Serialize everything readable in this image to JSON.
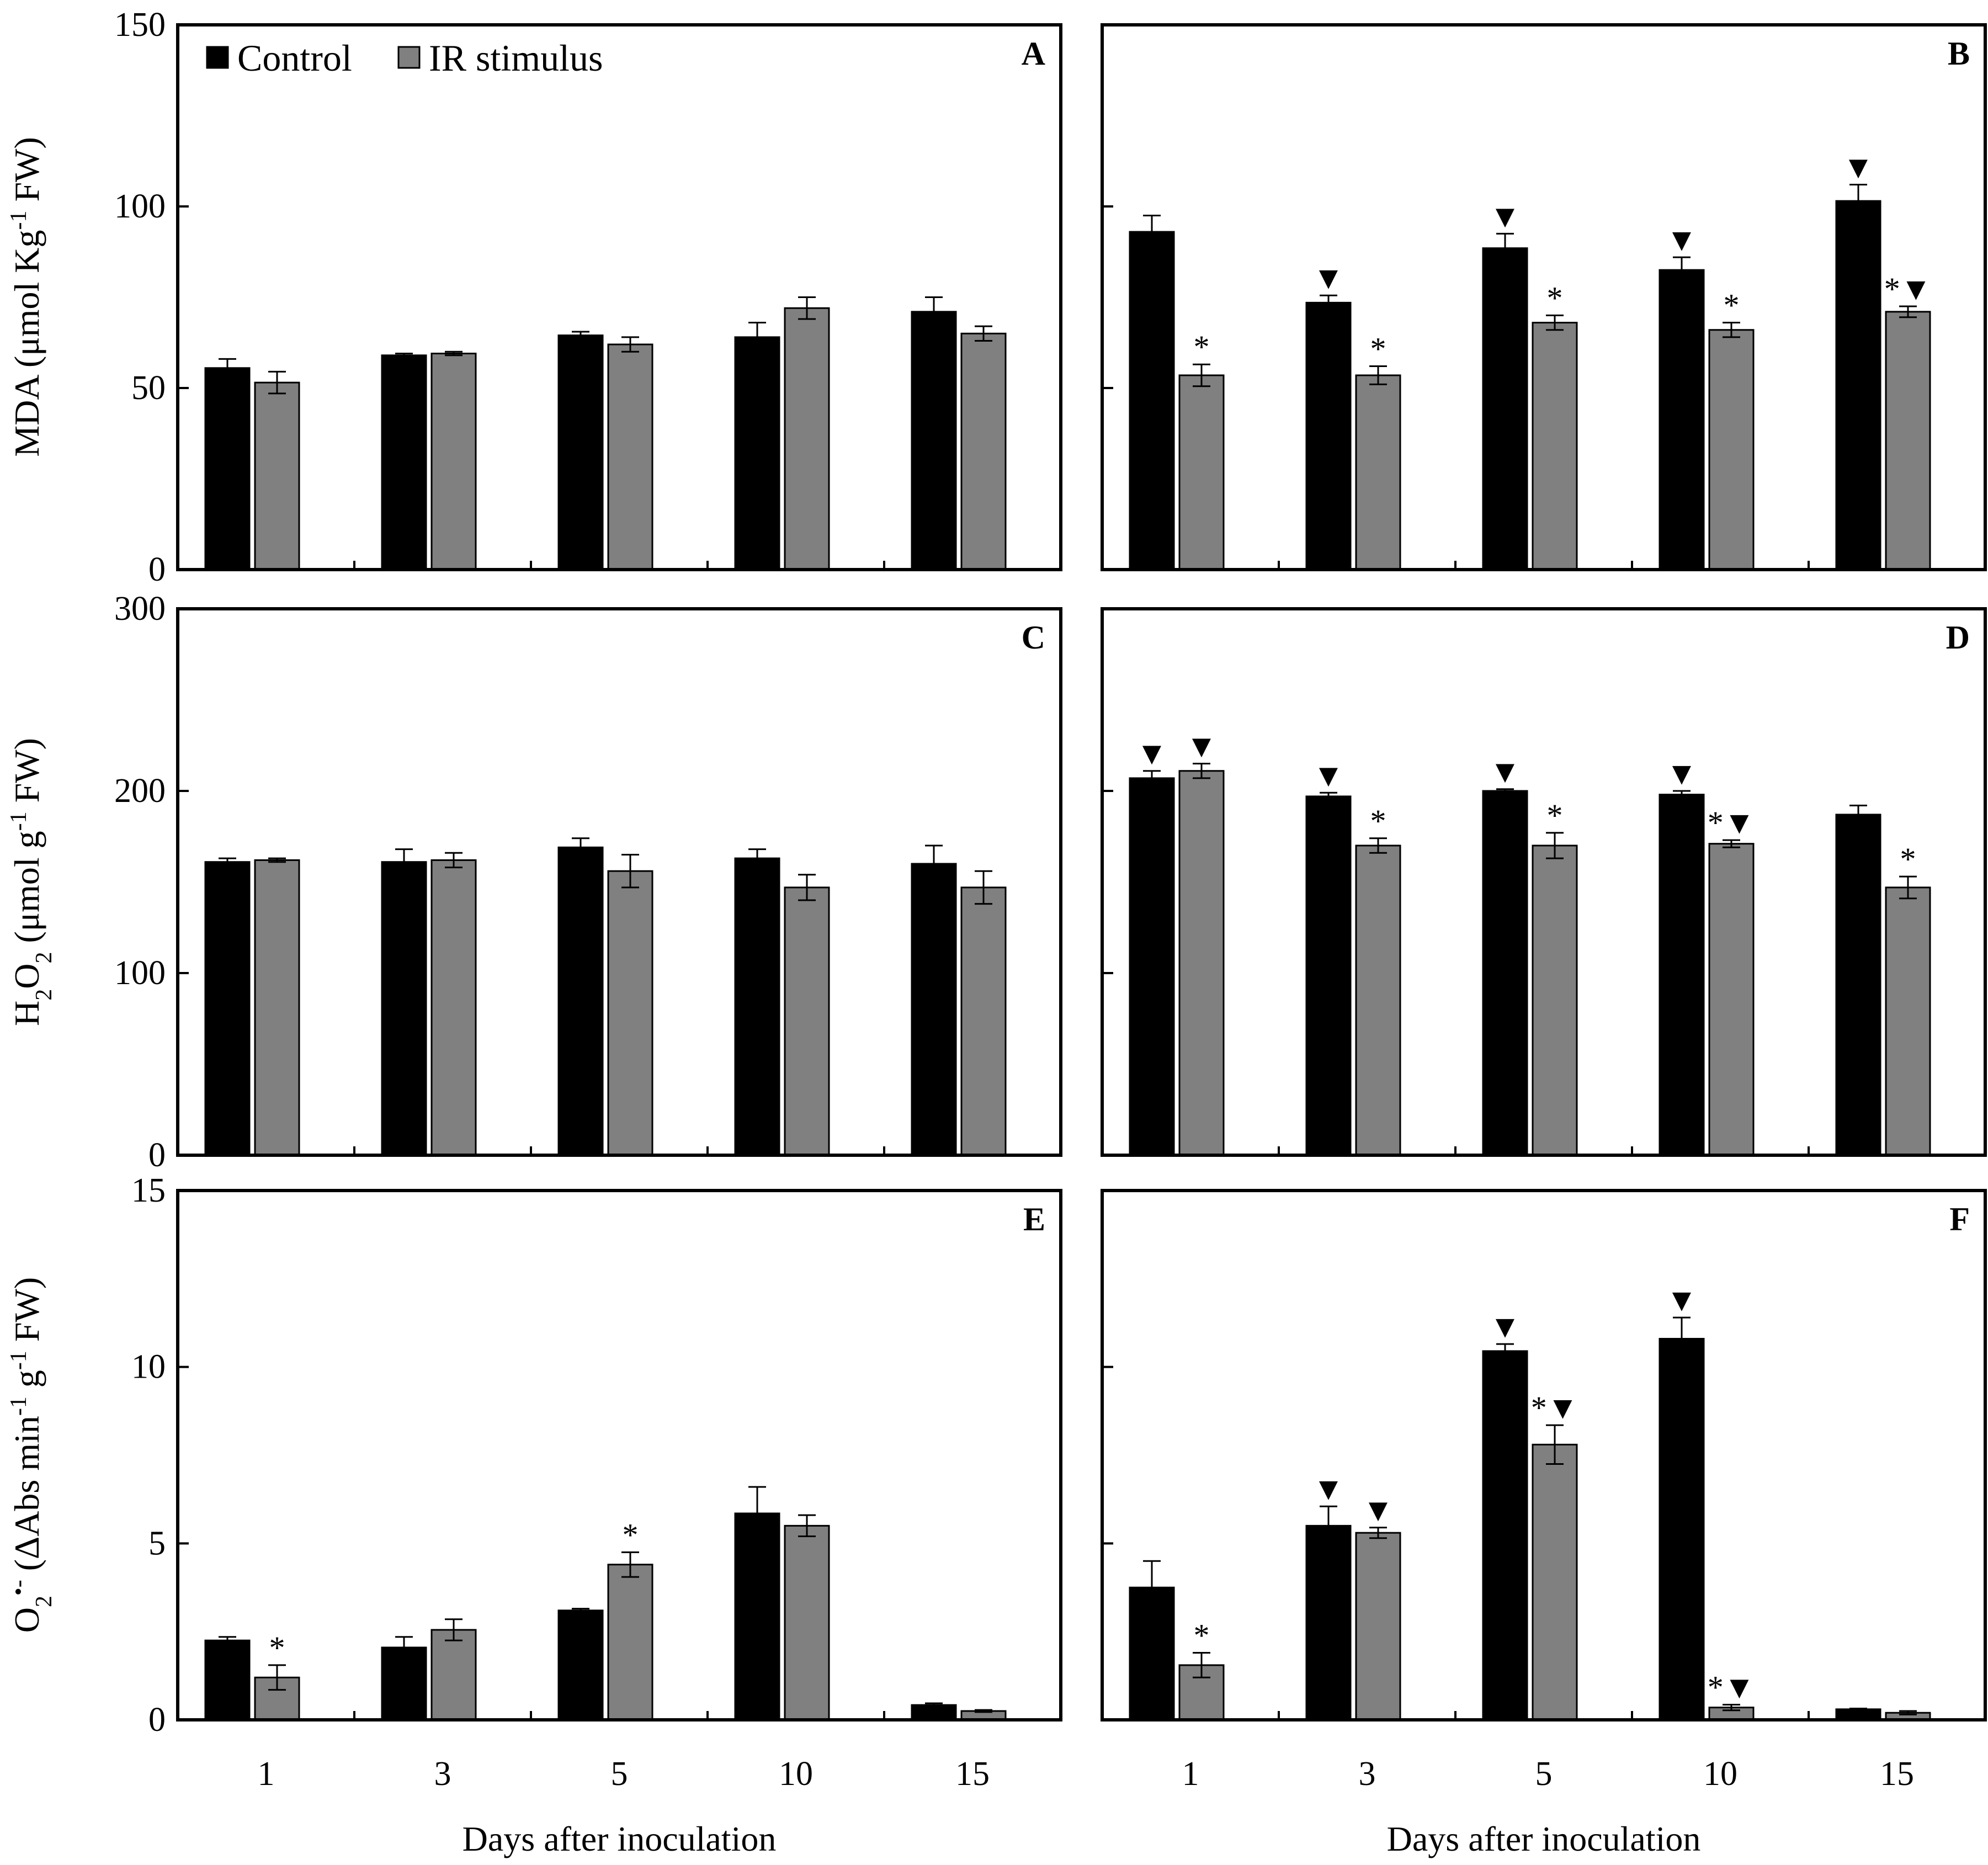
{
  "legend": {
    "control": "Control",
    "ir": "IR stimulus"
  },
  "colors": {
    "control": "#000000",
    "ir": "#808080"
  },
  "markers": {
    "star": "*",
    "triangle": "▼",
    "star_triangle": "*▼"
  },
  "ylabels": {
    "row1": {
      "main": "MDA (μmol Kg",
      "sup": "-1",
      "tail": " FW)"
    },
    "row2": {
      "pre": "H",
      "sub1": "2",
      "mid": "O",
      "sub2": "2",
      "tail": " (μmol g",
      "sup": "-1",
      "end": " FW)"
    },
    "row3": {
      "pre": "O",
      "sub": "2",
      "sup": "•-",
      "mid": " (ΔAbs min",
      "sup2": "-1",
      "mid2": "  g",
      "sup3": "-1",
      "end": " FW)"
    }
  },
  "xlabel": "Days after inoculation",
  "chart_data": [
    {
      "panel": "A",
      "type": "bar",
      "categories": [
        "1",
        "3",
        "5",
        "10",
        "15"
      ],
      "ylim": [
        0,
        150
      ],
      "yticks": [
        "0",
        "50",
        "100",
        "150"
      ],
      "series": [
        {
          "name": "Control",
          "values": [
            55.5,
            59,
            64.5,
            64,
            71
          ],
          "errors": [
            2.5,
            0.5,
            1,
            4,
            4
          ],
          "marks": [
            "",
            "",
            "",
            "",
            ""
          ]
        },
        {
          "name": "IR stimulus",
          "values": [
            51.5,
            59.5,
            62,
            72,
            65
          ],
          "errors": [
            3,
            0.5,
            2,
            3,
            2
          ],
          "marks": [
            "",
            "",
            "",
            "",
            ""
          ]
        }
      ]
    },
    {
      "panel": "B",
      "type": "bar",
      "categories": [
        "1",
        "3",
        "5",
        "10",
        "15"
      ],
      "ylim": [
        0,
        150
      ],
      "yticks": [
        "0",
        "50",
        "100",
        "150"
      ],
      "series": [
        {
          "name": "Control",
          "values": [
            93,
            73.5,
            88.5,
            82.5,
            101.5
          ],
          "errors": [
            4.5,
            2,
            4,
            3.5,
            4.5
          ],
          "marks": [
            "",
            "▼",
            "▼",
            "▼",
            "▼"
          ]
        },
        {
          "name": "IR stimulus",
          "values": [
            53.5,
            53.5,
            68,
            66,
            71
          ],
          "errors": [
            3,
            2.5,
            2,
            2,
            1.5
          ],
          "marks": [
            "*",
            "*",
            "*",
            "*",
            "*▼"
          ]
        }
      ]
    },
    {
      "panel": "C",
      "type": "bar",
      "categories": [
        "1",
        "3",
        "5",
        "10",
        "15"
      ],
      "ylim": [
        0,
        300
      ],
      "yticks": [
        "0",
        "100",
        "200",
        "300"
      ],
      "series": [
        {
          "name": "Control",
          "values": [
            161,
            161,
            169,
            163,
            160
          ],
          "errors": [
            2,
            7,
            5,
            5,
            10
          ],
          "marks": [
            "",
            "",
            "",
            "",
            ""
          ]
        },
        {
          "name": "IR stimulus",
          "values": [
            162,
            162,
            156,
            147,
            147
          ],
          "errors": [
            1,
            4,
            9,
            7,
            9
          ],
          "marks": [
            "",
            "",
            "",
            "",
            ""
          ]
        }
      ]
    },
    {
      "panel": "D",
      "type": "bar",
      "categories": [
        "1",
        "3",
        "5",
        "10",
        "15"
      ],
      "ylim": [
        0,
        300
      ],
      "yticks": [
        "0",
        "100",
        "200",
        "300"
      ],
      "series": [
        {
          "name": "Control",
          "values": [
            207,
            197,
            200,
            198,
            187
          ],
          "errors": [
            4,
            2,
            1,
            2,
            5
          ],
          "marks": [
            "▼",
            "▼",
            "▼",
            "▼",
            ""
          ]
        },
        {
          "name": "IR stimulus",
          "values": [
            211,
            170,
            170,
            171,
            147
          ],
          "errors": [
            4,
            4,
            7,
            2,
            6
          ],
          "marks": [
            "▼",
            "*",
            "*",
            "*▼",
            "*"
          ]
        }
      ]
    },
    {
      "panel": "E",
      "type": "bar",
      "categories": [
        "1",
        "3",
        "5",
        "10",
        "15"
      ],
      "ylim": [
        0,
        15
      ],
      "yticks": [
        "0",
        "5",
        "10",
        "15"
      ],
      "series": [
        {
          "name": "Control",
          "values": [
            2.25,
            2.05,
            3.1,
            5.85,
            0.42
          ],
          "errors": [
            0.1,
            0.3,
            0.05,
            0.75,
            0.05
          ],
          "marks": [
            "",
            "",
            "",
            "",
            ""
          ]
        },
        {
          "name": "IR stimulus",
          "values": [
            1.2,
            2.55,
            4.4,
            5.5,
            0.25
          ],
          "errors": [
            0.35,
            0.3,
            0.35,
            0.3,
            0.03
          ],
          "marks": [
            "*",
            "",
            "*",
            "",
            ""
          ]
        }
      ]
    },
    {
      "panel": "F",
      "type": "bar",
      "categories": [
        "1",
        "3",
        "5",
        "10",
        "15"
      ],
      "ylim": [
        0,
        15
      ],
      "yticks": [
        "0",
        "5",
        "10",
        "15"
      ],
      "series": [
        {
          "name": "Control",
          "values": [
            3.75,
            5.5,
            10.45,
            10.8,
            0.3
          ],
          "errors": [
            0.75,
            0.55,
            0.2,
            0.6,
            0.02
          ],
          "marks": [
            "",
            "▼",
            "▼",
            "▼",
            ""
          ]
        },
        {
          "name": "IR stimulus",
          "values": [
            1.55,
            5.3,
            7.8,
            0.35,
            0.2
          ],
          "errors": [
            0.35,
            0.15,
            0.55,
            0.08,
            0.05
          ],
          "marks": [
            "*",
            "▼",
            "*▼",
            "*▼",
            ""
          ]
        }
      ]
    }
  ]
}
